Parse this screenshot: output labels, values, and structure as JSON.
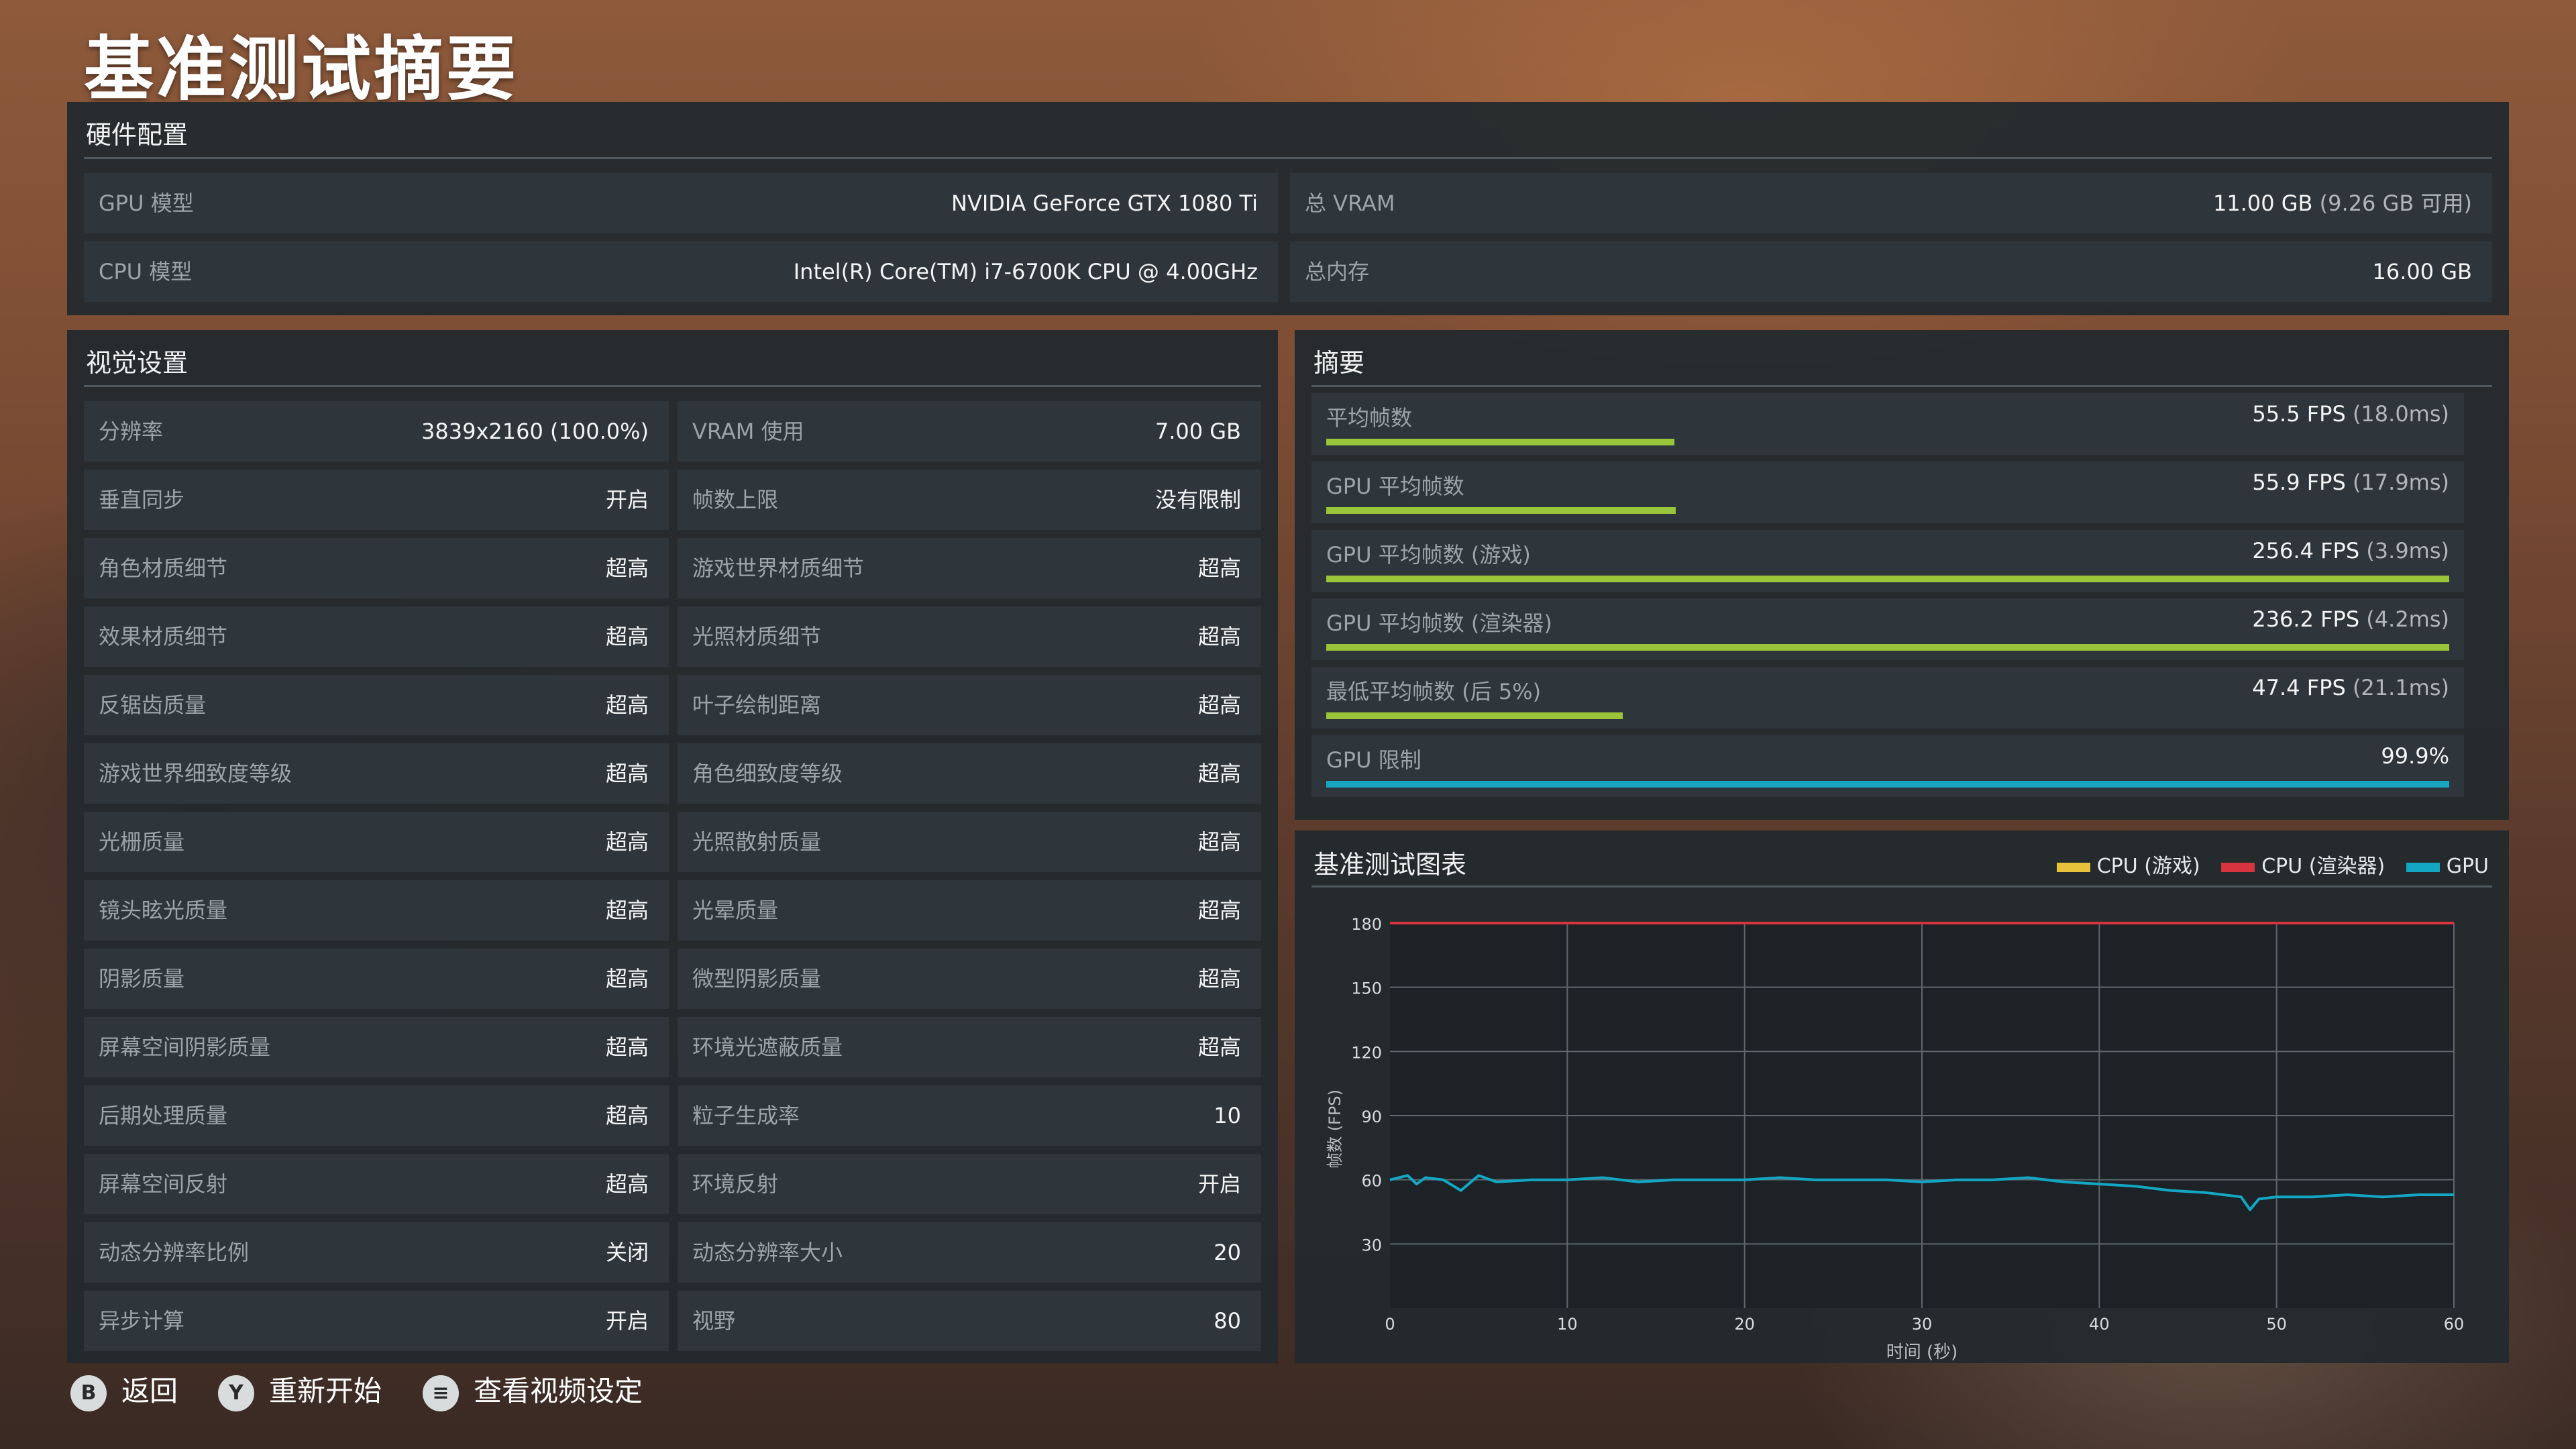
{
  "page_title": "基准测试摘要",
  "hardware": {
    "title": "硬件配置",
    "rows": [
      {
        "label": "GPU 模型",
        "value": "NVIDIA GeForce GTX 1080 Ti",
        "sub": ""
      },
      {
        "label": "总 VRAM",
        "value": "11.00 GB",
        "sub": " (9.26 GB 可用)"
      },
      {
        "label": "CPU 模型",
        "value": "Intel(R) Core(TM) i7-6700K CPU @ 4.00GHz",
        "sub": ""
      },
      {
        "label": "总内存",
        "value": "16.00 GB",
        "sub": ""
      }
    ]
  },
  "visual": {
    "title": "视觉设置",
    "left": [
      {
        "label": "分辨率",
        "value": "3839x2160 (100.0%)"
      },
      {
        "label": "垂直同步",
        "value": "开启"
      },
      {
        "label": "角色材质细节",
        "value": "超高"
      },
      {
        "label": "效果材质细节",
        "value": "超高"
      },
      {
        "label": "反锯齿质量",
        "value": "超高"
      },
      {
        "label": "游戏世界细致度等级",
        "value": "超高"
      },
      {
        "label": "光栅质量",
        "value": "超高"
      },
      {
        "label": "镜头眩光质量",
        "value": "超高"
      },
      {
        "label": "阴影质量",
        "value": "超高"
      },
      {
        "label": "屏幕空间阴影质量",
        "value": "超高"
      },
      {
        "label": "后期处理质量",
        "value": "超高"
      },
      {
        "label": "屏幕空间反射",
        "value": "超高"
      },
      {
        "label": "动态分辨率比例",
        "value": "关闭"
      },
      {
        "label": "异步计算",
        "value": "开启"
      }
    ],
    "right": [
      {
        "label": "VRAM 使用",
        "value": "7.00 GB"
      },
      {
        "label": "帧数上限",
        "value": "没有限制"
      },
      {
        "label": "游戏世界材质细节",
        "value": "超高"
      },
      {
        "label": "光照材质细节",
        "value": "超高"
      },
      {
        "label": "叶子绘制距离",
        "value": "超高"
      },
      {
        "label": "角色细致度等级",
        "value": "超高"
      },
      {
        "label": "光照散射质量",
        "value": "超高"
      },
      {
        "label": "光晕质量",
        "value": "超高"
      },
      {
        "label": "微型阴影质量",
        "value": "超高"
      },
      {
        "label": "环境光遮蔽质量",
        "value": "超高"
      },
      {
        "label": "粒子生成率",
        "value": "10"
      },
      {
        "label": "环境反射",
        "value": "开启"
      },
      {
        "label": "动态分辨率大小",
        "value": "20"
      },
      {
        "label": "视野",
        "value": "80"
      }
    ]
  },
  "summary": {
    "title": "摘要",
    "rows": [
      {
        "label": "平均帧数",
        "value": "55.5 FPS",
        "sub": " (18.0ms)",
        "fill": 0.31,
        "color": "#9ac43a"
      },
      {
        "label": "GPU 平均帧数",
        "value": "55.9 FPS",
        "sub": " (17.9ms)",
        "fill": 0.311,
        "color": "#9ac43a"
      },
      {
        "label": "GPU 平均帧数 (游戏)",
        "value": "256.4 FPS",
        "sub": " (3.9ms)",
        "fill": 1.0,
        "color": "#9ac43a"
      },
      {
        "label": "GPU 平均帧数 (渲染器)",
        "value": "236.2 FPS",
        "sub": " (4.2ms)",
        "fill": 1.0,
        "color": "#9ac43a"
      },
      {
        "label": "最低平均帧数 (后 5%)",
        "value": "47.4 FPS",
        "sub": " (21.1ms)",
        "fill": 0.264,
        "color": "#9ac43a"
      },
      {
        "label": "GPU 限制",
        "value": "99.9%",
        "sub": "",
        "fill": 1.0,
        "color": "#1aa6c2"
      }
    ]
  },
  "chart_panel": {
    "title": "基准测试图表",
    "legend": [
      {
        "name": "CPU (游戏)",
        "color": "#e8c23a"
      },
      {
        "name": "CPU (渲染器)",
        "color": "#d8343f"
      },
      {
        "name": "GPU",
        "color": "#14a7c4"
      }
    ]
  },
  "chart_data": {
    "type": "line",
    "xlabel": "时间 (秒)",
    "ylabel": "帧数 (FPS)",
    "xlim": [
      0,
      60
    ],
    "ylim": [
      0,
      180
    ],
    "x_ticks": [
      0,
      10,
      20,
      30,
      40,
      50,
      60
    ],
    "y_ticks": [
      30,
      60,
      90,
      120,
      150,
      180
    ],
    "grid": true,
    "series": [
      {
        "name": "GPU",
        "color": "#14a7c4",
        "x": [
          0,
          1,
          1.5,
          2,
          3,
          4,
          5,
          6,
          8,
          10,
          12,
          14,
          16,
          18,
          20,
          22,
          24,
          26,
          28,
          30,
          32,
          34,
          36,
          38,
          40,
          42,
          44,
          46,
          47,
          48,
          48.5,
          49,
          50,
          52,
          54,
          56,
          58,
          60
        ],
        "values": [
          60,
          62,
          58,
          61,
          60,
          55,
          62,
          59,
          60,
          60,
          61,
          59,
          60,
          60,
          60,
          61,
          60,
          60,
          60,
          59,
          60,
          60,
          61,
          59,
          58,
          57,
          55,
          54,
          53,
          52,
          46,
          51,
          52,
          52,
          53,
          52,
          53,
          53
        ]
      },
      {
        "name": "CPU (渲染器)",
        "color": "#d8343f",
        "x": [
          0,
          10,
          20,
          30,
          40,
          50,
          60
        ],
        "values": [
          180,
          180,
          180,
          180,
          180,
          180,
          180
        ]
      }
    ]
  },
  "footer": {
    "buttons": [
      {
        "key": "B",
        "label": "返回"
      },
      {
        "key": "Y",
        "label": "重新开始"
      },
      {
        "key": "≡",
        "label": "查看视频设定"
      }
    ]
  }
}
